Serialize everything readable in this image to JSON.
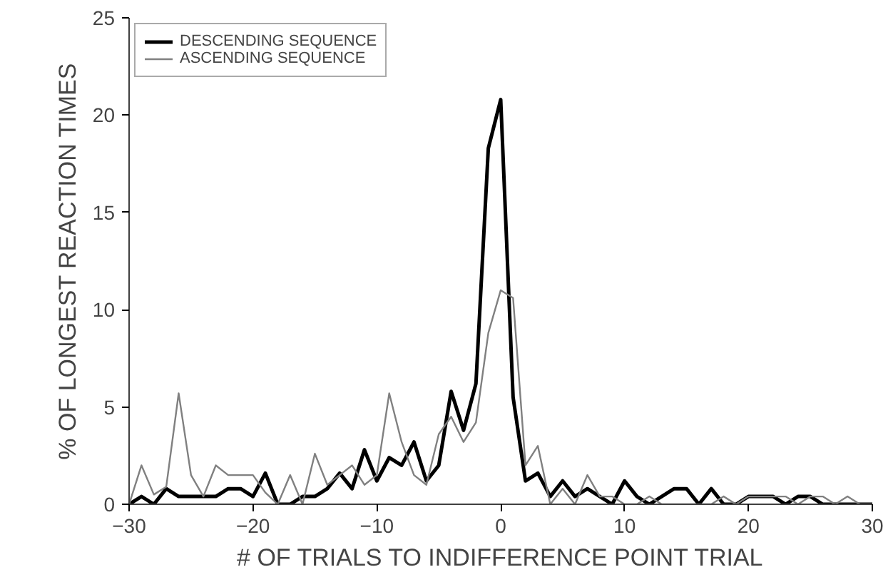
{
  "chart_data": {
    "type": "line",
    "xlabel": "# OF TRIALS TO INDIFFERENCE POINT TRIAL",
    "ylabel": "% OF LONGEST REACTION TIMES",
    "x": [
      -30,
      -29,
      -28,
      -27,
      -26,
      -25,
      -24,
      -23,
      -22,
      -21,
      -20,
      -19,
      -18,
      -17,
      -16,
      -15,
      -14,
      -13,
      -12,
      -11,
      -10,
      -9,
      -8,
      -7,
      -6,
      -5,
      -4,
      -3,
      -2,
      -1,
      0,
      1,
      2,
      3,
      4,
      5,
      6,
      7,
      8,
      9,
      10,
      11,
      12,
      13,
      14,
      15,
      16,
      17,
      18,
      19,
      20,
      21,
      22,
      23,
      24,
      25,
      26,
      27,
      28,
      29,
      30
    ],
    "series": [
      {
        "name": "DESCENDING SEQUENCE",
        "color": "#000000",
        "values": [
          0,
          0.4,
          0,
          0.8,
          0.4,
          0.4,
          0.4,
          0.4,
          0.8,
          0.8,
          0.4,
          1.6,
          0,
          0,
          0.4,
          0.4,
          0.8,
          1.6,
          0.8,
          2.8,
          1.2,
          2.4,
          2.0,
          3.2,
          1.2,
          2.0,
          5.8,
          3.8,
          6.2,
          18.3,
          20.8,
          5.5,
          1.2,
          1.6,
          0.4,
          1.2,
          0.4,
          0.8,
          0.4,
          0,
          1.2,
          0.4,
          0,
          0.4,
          0.8,
          0.8,
          0,
          0.8,
          0,
          0,
          0.4,
          0.4,
          0.4,
          0,
          0.4,
          0.4,
          0,
          0,
          0,
          0,
          0
        ]
      },
      {
        "name": "ASCENDING SEQUENCE",
        "color": "#808080",
        "values": [
          0,
          2.0,
          0.5,
          0.9,
          5.7,
          1.5,
          0.4,
          2.0,
          1.5,
          1.5,
          1.5,
          0.6,
          0,
          1.5,
          0,
          2.6,
          1.0,
          1.5,
          2.0,
          1.0,
          1.5,
          5.7,
          3.2,
          1.5,
          1.0,
          3.6,
          4.5,
          3.2,
          4.2,
          8.8,
          11.0,
          10.6,
          2.0,
          3.0,
          0,
          0.8,
          0,
          1.5,
          0.4,
          0.4,
          0,
          0,
          0.4,
          0,
          0,
          0,
          0,
          0,
          0.4,
          0,
          0.4,
          0.4,
          0.4,
          0.4,
          0,
          0.4,
          0.4,
          0,
          0.4,
          0,
          0
        ]
      }
    ],
    "xlim": [
      -30,
      30
    ],
    "xticks": [
      -30,
      -20,
      -10,
      0,
      10,
      20,
      30
    ],
    "ylim": [
      0,
      25
    ],
    "yticks": [
      0,
      5,
      10,
      15,
      20,
      25
    ],
    "grid": false,
    "legend": "top left",
    "marker": "none",
    "line_style": "solid"
  }
}
